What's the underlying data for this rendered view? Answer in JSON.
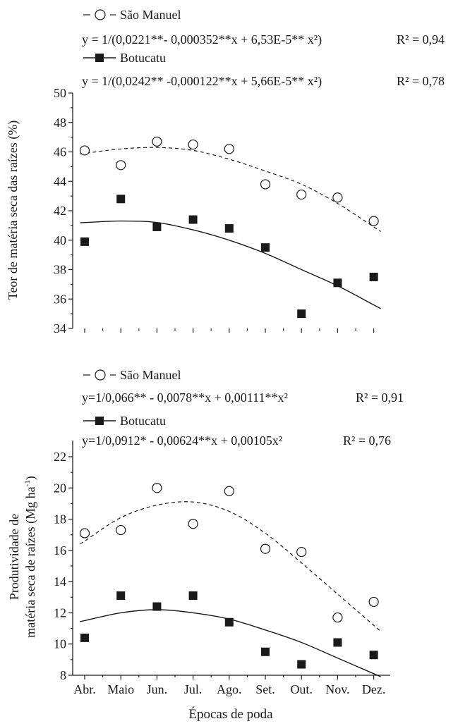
{
  "chart_data": [
    {
      "type": "scatter",
      "ylabel": "Teor de matéria seca das raízes (%)",
      "xlabel": "",
      "ylim": [
        34,
        50
      ],
      "yticks": [
        34,
        36,
        38,
        40,
        42,
        44,
        46,
        48,
        50
      ],
      "categories": [
        "Abr.",
        "Maio",
        "Jun.",
        "Jul.",
        "Ago.",
        "Set.",
        "Out.",
        "Nov.",
        "Dez."
      ],
      "legend": [
        {
          "name": "São Manuel",
          "marker": "open-circle",
          "line": "dashed",
          "equation": "y = 1/(0,0221**- 0,000352**x + 6,53E-5** x²)",
          "r2": "R² = 0,94"
        },
        {
          "name": "Botucatu",
          "marker": "filled-square",
          "line": "solid",
          "equation": "y = 1/(0,0242** -0,000122**x + 5,66E-5** x²)",
          "r2": "R² = 0,78"
        }
      ],
      "series": [
        {
          "name": "São Manuel",
          "values": [
            46.1,
            45.1,
            46.7,
            46.5,
            46.2,
            43.8,
            43.1,
            42.9,
            41.3
          ],
          "fit": [
            45.9,
            46.2,
            46.3,
            46.1,
            45.5,
            44.7,
            43.8,
            42.5,
            40.9
          ]
        },
        {
          "name": "Botucatu",
          "values": [
            39.9,
            42.8,
            40.9,
            41.4,
            40.8,
            39.5,
            35.0,
            37.1,
            37.5
          ],
          "fit": [
            41.2,
            41.3,
            41.2,
            40.7,
            40.0,
            39.1,
            38.0,
            36.9,
            35.6
          ]
        }
      ]
    },
    {
      "type": "scatter",
      "ylabel": "Produtividade de matéria seca de raízes (Mg ha-1)",
      "ylabel_lines": [
        "Produtividade de",
        "matéria seca de raízes (Mg ha",
        "-1",
        ")"
      ],
      "xlabel": "Épocas de poda",
      "ylim": [
        8,
        22
      ],
      "yticks": [
        8,
        10,
        12,
        14,
        16,
        18,
        20,
        22
      ],
      "categories": [
        "Abr.",
        "Maio",
        "Jun.",
        "Jul.",
        "Ago.",
        "Set.",
        "Out.",
        "Nov.",
        "Dez."
      ],
      "legend": [
        {
          "name": "São Manuel",
          "marker": "open-circle",
          "line": "dashed",
          "equation": "y=1/0,066** - 0,0078**x + 0,00111**x²",
          "r2": "R² = 0,91"
        },
        {
          "name": "Botucatu",
          "marker": "filled-square",
          "line": "solid",
          "equation": "y=1/0,0912* - 0,00624**x + 0,00105x²",
          "r2": "R² = 0,76"
        }
      ],
      "series": [
        {
          "name": "São Manuel",
          "values": [
            17.1,
            17.3,
            20.0,
            17.7,
            19.8,
            16.1,
            15.9,
            11.7,
            12.7
          ],
          "fit": [
            16.6,
            18.1,
            18.9,
            19.1,
            18.5,
            17.1,
            15.2,
            13.2,
            11.2
          ]
        },
        {
          "name": "Botucatu",
          "values": [
            10.4,
            13.1,
            12.4,
            13.1,
            11.4,
            9.5,
            8.7,
            10.1,
            9.3
          ],
          "fit": [
            11.5,
            12.0,
            12.2,
            12.0,
            11.6,
            10.9,
            10.1,
            9.1,
            8.1
          ]
        }
      ]
    }
  ]
}
